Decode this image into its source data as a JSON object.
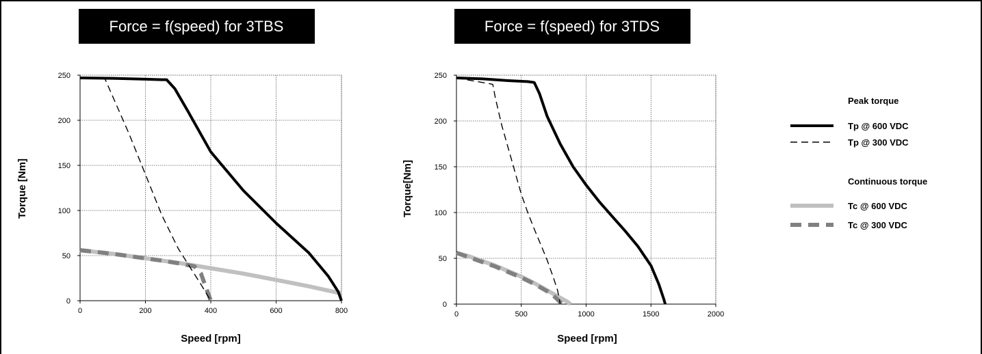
{
  "series_styles": {
    "Tp @ 600 VDC": {
      "color": "#000000",
      "dash": "none",
      "width": 4
    },
    "Tp @ 300 VDC": {
      "color": "#000000",
      "dash": "10 6",
      "width": 1.4
    },
    "Tc @ 600 VDC": {
      "color": "#c0c0c0",
      "dash": "none",
      "width": 6
    },
    "Tc @ 300 VDC": {
      "color": "#808080",
      "dash": "16 10",
      "width": 6
    }
  },
  "legend": {
    "peak_heading": "Peak torque",
    "continuous_heading": "Continuous torque",
    "entries": [
      "Tp @ 600 VDC",
      "Tp @ 300 VDC",
      "Tc @ 600 VDC",
      "Tc @ 300 VDC"
    ]
  },
  "chart_data": [
    {
      "type": "line",
      "title": "Force = f(speed) for 3TBS",
      "xlabel": "Speed [rpm]",
      "ylabel": "Torque [Nm]",
      "xlim": [
        0,
        800
      ],
      "ylim": [
        0,
        250
      ],
      "xticks": [
        0,
        200,
        400,
        600,
        800
      ],
      "yticks": [
        0,
        50,
        100,
        150,
        200,
        250
      ],
      "grid": true,
      "series": [
        {
          "name": "Tp @ 600 VDC",
          "x": [
            0,
            100,
            200,
            250,
            265,
            290,
            330,
            400,
            500,
            600,
            700,
            760,
            790,
            800
          ],
          "y": [
            247,
            246.5,
            245.5,
            245,
            245,
            235,
            210,
            165,
            122,
            86,
            53,
            27,
            10,
            0
          ]
        },
        {
          "name": "Tp @ 300 VDC",
          "x": [
            0,
            75,
            150,
            200,
            250,
            300,
            340,
            370,
            390,
            400
          ],
          "y": [
            247,
            247,
            185,
            140,
            95,
            58,
            35,
            18,
            6,
            0
          ]
        },
        {
          "name": "Tc @ 600 VDC",
          "x": [
            0,
            100,
            200,
            300,
            400,
            500,
            600,
            700,
            800
          ],
          "y": [
            56,
            52,
            47,
            42,
            36,
            30,
            23,
            16,
            8
          ]
        },
        {
          "name": "Tc @ 300 VDC",
          "x": [
            0,
            50,
            100,
            150,
            200,
            250,
            300,
            350,
            370,
            385,
            395,
            400
          ],
          "y": [
            56,
            54,
            52,
            49.5,
            47,
            44.5,
            41.5,
            38,
            30,
            15,
            5,
            0
          ]
        }
      ]
    },
    {
      "type": "line",
      "title": "Force = f(speed) for 3TDS",
      "xlabel": "Speed [rpm]",
      "ylabel": "Torque[Nm]",
      "xlim": [
        0,
        2000
      ],
      "ylim": [
        0,
        250
      ],
      "xticks": [
        0,
        500,
        1000,
        1500,
        2000
      ],
      "yticks": [
        0,
        50,
        100,
        150,
        200,
        250
      ],
      "grid": true,
      "series": [
        {
          "name": "Tp @ 600 VDC",
          "x": [
            0,
            200,
            400,
            550,
            600,
            640,
            700,
            800,
            900,
            1000,
            1100,
            1200,
            1300,
            1400,
            1500,
            1560,
            1600,
            1610
          ],
          "y": [
            247,
            246,
            244,
            243,
            242,
            230,
            205,
            175,
            150,
            130,
            112,
            96,
            80,
            63,
            42,
            22,
            5,
            0
          ]
        },
        {
          "name": "Tp @ 300 VDC",
          "x": [
            0,
            280,
            300,
            350,
            400,
            450,
            500,
            550,
            600,
            650,
            700,
            750,
            780,
            800
          ],
          "y": [
            247,
            240,
            225,
            195,
            170,
            145,
            120,
            100,
            82,
            65,
            48,
            28,
            15,
            0
          ]
        },
        {
          "name": "Tc @ 600 VDC",
          "x": [
            0,
            100,
            200,
            300,
            400,
            500,
            600,
            700,
            750,
            800,
            850,
            880
          ],
          "y": [
            56,
            52,
            47,
            42,
            36,
            30,
            23,
            15,
            11,
            7,
            3,
            0
          ]
        },
        {
          "name": "Tc @ 300 VDC",
          "x": [
            0,
            100,
            200,
            300,
            400,
            500,
            600,
            700,
            750,
            780,
            800,
            820
          ],
          "y": [
            56,
            51,
            46,
            41,
            35,
            29,
            22,
            14,
            9,
            5,
            2,
            0
          ]
        }
      ]
    }
  ]
}
